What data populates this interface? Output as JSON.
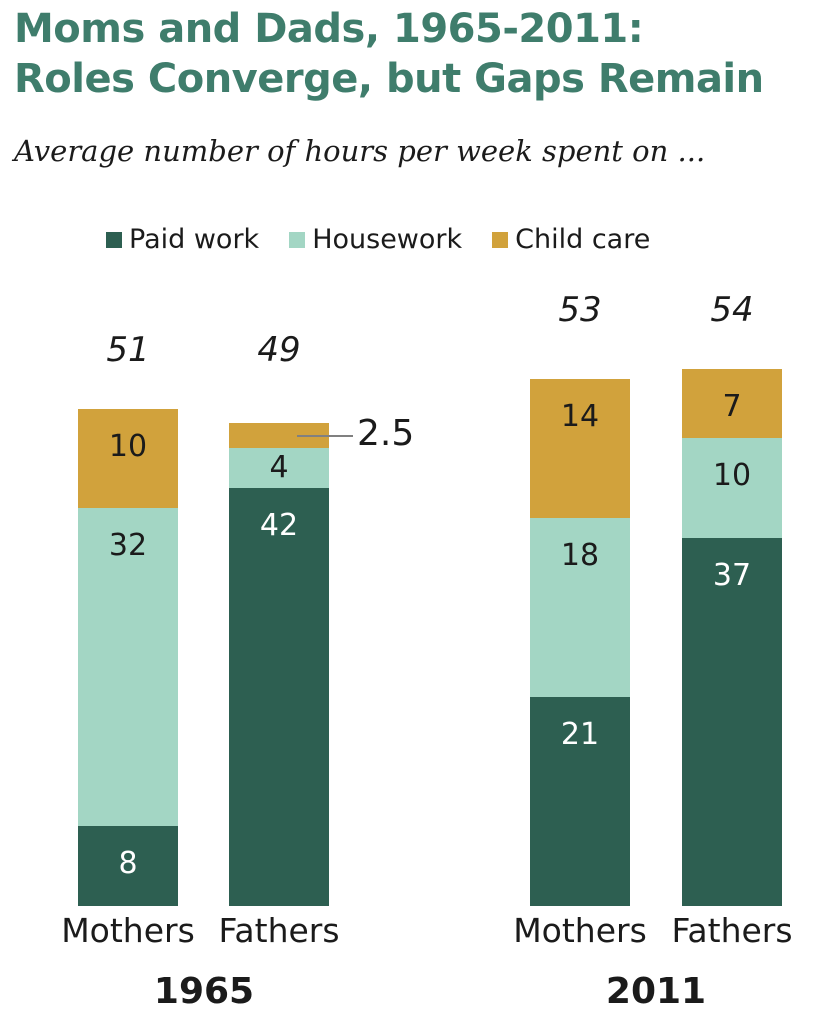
{
  "title": {
    "line1": "Moms and Dads, 1965-2011:",
    "line2": "Roles Converge, but Gaps Remain"
  },
  "subtitle": "Average number of hours per week spent on ...",
  "legend": {
    "items": [
      {
        "label": "Paid work",
        "color": "#2D5F51"
      },
      {
        "label": "Housework",
        "color": "#A3D6C4"
      },
      {
        "label": "Child care",
        "color": "#D1A23C"
      }
    ]
  },
  "colors": {
    "title_text": "#3F7D6C",
    "paid_work": "#2D5F51",
    "housework": "#A3D6C4",
    "child_care": "#D1A23C",
    "value_on_dark": "#FFFFFF",
    "value_on_light": "#1B1B1B",
    "callout_line": "#808080",
    "background": "#FFFFFF"
  },
  "chart_data": {
    "type": "bar",
    "stacked": true,
    "title": "Moms and Dads, 1965-2011: Roles Converge, but Gaps Remain",
    "subtitle": "Average number of hours per week spent on ...",
    "unit": "hours per week",
    "legend_entries": [
      "Paid work",
      "Housework",
      "Child care"
    ],
    "legend_position": "top",
    "grid": false,
    "axes_visible": false,
    "stack_order_bottom_to_top": [
      "Paid work",
      "Housework",
      "Child care"
    ],
    "groups": [
      {
        "year": "1965",
        "bars": [
          {
            "category": "Mothers",
            "total_label": "51",
            "segments": [
              {
                "series": "Paid work",
                "value": 8,
                "label": "8"
              },
              {
                "series": "Housework",
                "value": 32,
                "label": "32"
              },
              {
                "series": "Child care",
                "value": 10,
                "label": "10"
              }
            ]
          },
          {
            "category": "Fathers",
            "total_label": "49",
            "segments": [
              {
                "series": "Paid work",
                "value": 42,
                "label": "42"
              },
              {
                "series": "Housework",
                "value": 4,
                "label": "4"
              },
              {
                "series": "Child care",
                "value": 2.5,
                "label": "2.5",
                "callout": true
              }
            ]
          }
        ]
      },
      {
        "year": "2011",
        "bars": [
          {
            "category": "Mothers",
            "total_label": "53",
            "segments": [
              {
                "series": "Paid work",
                "value": 21,
                "label": "21"
              },
              {
                "series": "Housework",
                "value": 18,
                "label": "18"
              },
              {
                "series": "Child care",
                "value": 14,
                "label": "14"
              }
            ]
          },
          {
            "category": "Fathers",
            "total_label": "54",
            "segments": [
              {
                "series": "Paid work",
                "value": 37,
                "label": "37"
              },
              {
                "series": "Housework",
                "value": 10,
                "label": "10"
              },
              {
                "series": "Child care",
                "value": 7,
                "label": "7"
              }
            ]
          }
        ]
      }
    ]
  }
}
